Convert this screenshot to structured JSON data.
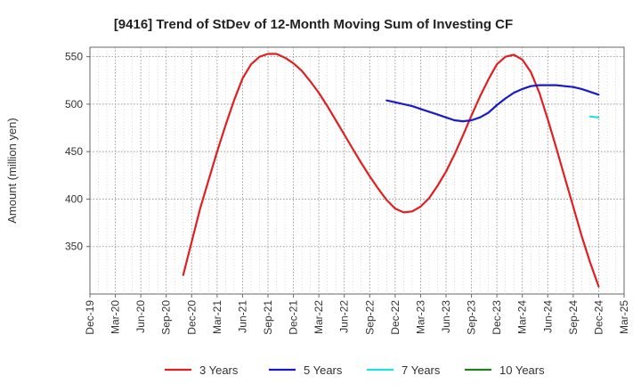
{
  "chart_data": {
    "type": "line",
    "title": "[9416]  Trend of StDev of 12-Month Moving Sum of Investing CF",
    "ylabel": "Amount (million yen)",
    "xlabel": "",
    "ylim": [
      300,
      560
    ],
    "yticks": [
      350,
      400,
      450,
      500,
      550
    ],
    "xticks": [
      "Dec-19",
      "Mar-20",
      "Jun-20",
      "Sep-20",
      "Dec-20",
      "Mar-21",
      "Jun-21",
      "Sep-21",
      "Dec-21",
      "Mar-22",
      "Jun-22",
      "Sep-22",
      "Dec-22",
      "Mar-23",
      "Jun-23",
      "Sep-23",
      "Dec-23",
      "Mar-24",
      "Jun-24",
      "Sep-24",
      "Dec-24",
      "Mar-25"
    ],
    "grid": true,
    "legend_position": "bottom",
    "series": [
      {
        "name": "3 Years",
        "color": "#e02020",
        "points": [
          [
            "Nov-20",
            320
          ],
          [
            "Dec-20",
            355
          ],
          [
            "Jan-21",
            390
          ],
          [
            "Feb-21",
            420
          ],
          [
            "Mar-21",
            450
          ],
          [
            "Apr-21",
            478
          ],
          [
            "May-21",
            504
          ],
          [
            "Jun-21",
            527
          ],
          [
            "Jul-21",
            542
          ],
          [
            "Aug-21",
            550
          ],
          [
            "Sep-21",
            553
          ],
          [
            "Oct-21",
            553
          ],
          [
            "Nov-21",
            549
          ],
          [
            "Dec-21",
            543
          ],
          [
            "Jan-22",
            535
          ],
          [
            "Feb-22",
            524
          ],
          [
            "Mar-22",
            512
          ],
          [
            "Apr-22",
            498
          ],
          [
            "May-22",
            483
          ],
          [
            "Jun-22",
            468
          ],
          [
            "Jul-22",
            453
          ],
          [
            "Aug-22",
            438
          ],
          [
            "Sep-22",
            424
          ],
          [
            "Oct-22",
            411
          ],
          [
            "Nov-22",
            399
          ],
          [
            "Dec-22",
            390
          ],
          [
            "Jan-23",
            386
          ],
          [
            "Feb-23",
            387
          ],
          [
            "Mar-23",
            392
          ],
          [
            "Apr-23",
            401
          ],
          [
            "May-23",
            414
          ],
          [
            "Jun-23",
            429
          ],
          [
            "Jul-23",
            447
          ],
          [
            "Aug-23",
            467
          ],
          [
            "Sep-23",
            488
          ],
          [
            "Oct-23",
            508
          ],
          [
            "Nov-23",
            526
          ],
          [
            "Dec-23",
            542
          ],
          [
            "Jan-24",
            550
          ],
          [
            "Feb-24",
            552
          ],
          [
            "Mar-24",
            547
          ],
          [
            "Apr-24",
            534
          ],
          [
            "May-24",
            512
          ],
          [
            "Jun-24",
            484
          ],
          [
            "Jul-24",
            454
          ],
          [
            "Aug-24",
            423
          ],
          [
            "Sep-24",
            392
          ],
          [
            "Oct-24",
            361
          ],
          [
            "Nov-24",
            333
          ],
          [
            "Dec-24",
            308
          ]
        ]
      },
      {
        "name": "5 Years",
        "color": "#1a1acc",
        "points": [
          [
            "Nov-22",
            504
          ],
          [
            "Dec-22",
            502
          ],
          [
            "Jan-23",
            500
          ],
          [
            "Feb-23",
            498
          ],
          [
            "Mar-23",
            495
          ],
          [
            "Apr-23",
            492
          ],
          [
            "May-23",
            489
          ],
          [
            "Jun-23",
            486
          ],
          [
            "Jul-23",
            483
          ],
          [
            "Aug-23",
            482
          ],
          [
            "Sep-23",
            483
          ],
          [
            "Oct-23",
            486
          ],
          [
            "Nov-23",
            491
          ],
          [
            "Dec-23",
            499
          ],
          [
            "Jan-24",
            506
          ],
          [
            "Feb-24",
            512
          ],
          [
            "Mar-24",
            516
          ],
          [
            "Apr-24",
            519
          ],
          [
            "May-24",
            520
          ],
          [
            "Jun-24",
            520
          ],
          [
            "Jul-24",
            520
          ],
          [
            "Aug-24",
            519
          ],
          [
            "Sep-24",
            518
          ],
          [
            "Oct-24",
            516
          ],
          [
            "Nov-24",
            513
          ],
          [
            "Dec-24",
            510
          ]
        ]
      },
      {
        "name": "7 Years",
        "color": "#20e0e0",
        "points": [
          [
            "Nov-24",
            487
          ],
          [
            "Dec-24",
            486
          ]
        ]
      },
      {
        "name": "10 Years",
        "color": "#208020",
        "points": []
      }
    ]
  }
}
